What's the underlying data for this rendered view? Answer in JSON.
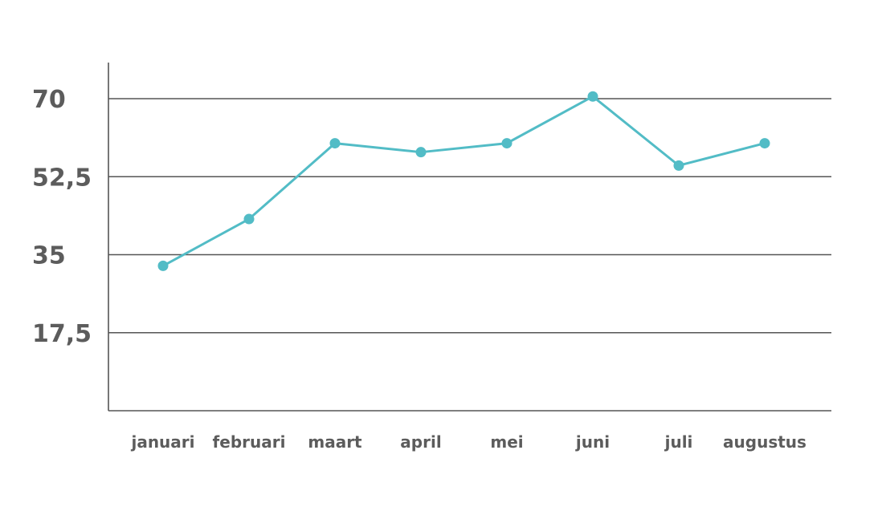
{
  "chart_data": {
    "type": "line",
    "categories": [
      "januari",
      "februari",
      "maart",
      "april",
      "mei",
      "juni",
      "juli",
      "augustus"
    ],
    "series": [
      {
        "values": [
          32.5,
          43,
          60,
          58,
          60,
          70.5,
          55,
          60
        ]
      }
    ],
    "title": "",
    "xlabel": "",
    "ylabel": "",
    "ylim": [
      0,
      70
    ],
    "yticks": [
      17.5,
      35,
      52.5,
      70
    ],
    "ytick_labels": [
      "17,5",
      "35",
      "52,5",
      "70"
    ],
    "grid": true,
    "legend": "none",
    "colors": {
      "line": "#52bcc6",
      "marker": "#52bcc6",
      "grid": "#555555",
      "text": "#5c5c5c"
    }
  }
}
